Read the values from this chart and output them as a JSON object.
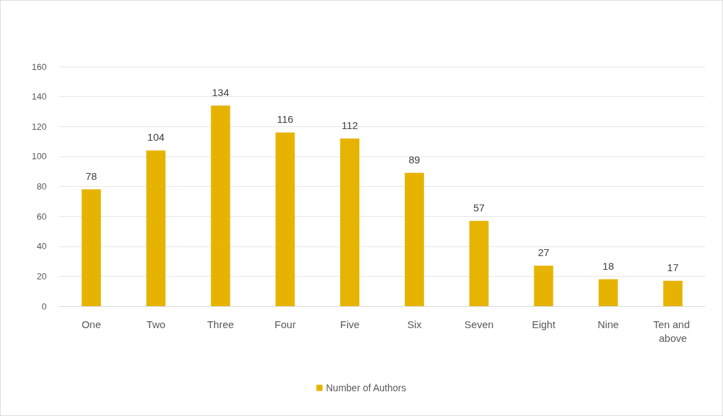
{
  "chart_data": {
    "type": "bar",
    "categories": [
      "One",
      "Two",
      "Three",
      "Four",
      "Five",
      "Six",
      "Seven",
      "Eight",
      "Nine",
      "Ten and above"
    ],
    "series": [
      {
        "name": "Number of Authors",
        "color": "#e6b400",
        "values": [
          78,
          104,
          134,
          116,
          112,
          89,
          57,
          27,
          18,
          17
        ]
      }
    ],
    "ylim": [
      0,
      160
    ],
    "yticks": [
      0,
      20,
      40,
      60,
      80,
      100,
      120,
      140,
      160
    ],
    "grid": "y",
    "legend": "bottom",
    "data_labels": true
  }
}
